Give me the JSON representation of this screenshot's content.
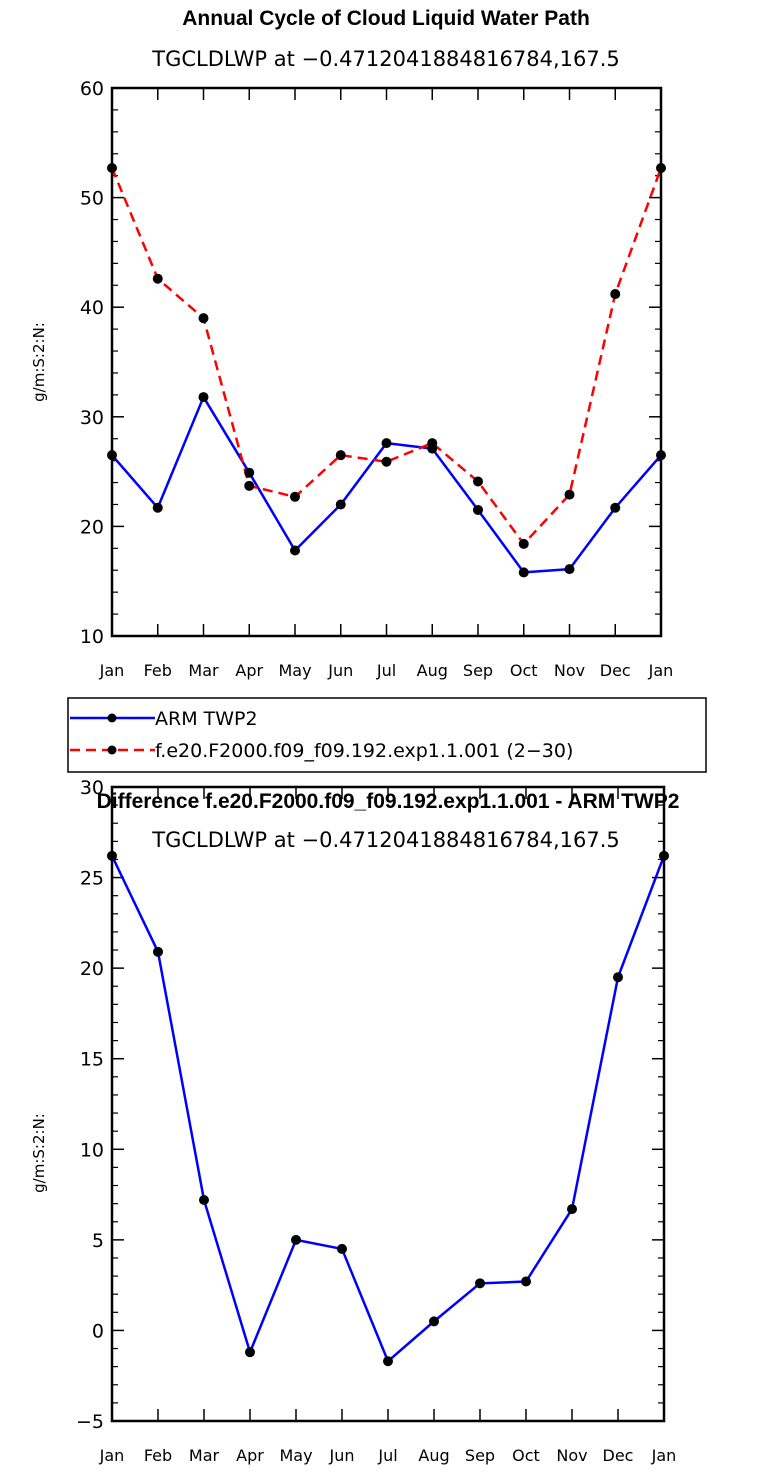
{
  "chart_data": [
    {
      "type": "line",
      "title": "Annual Cycle of Cloud Liquid Water Path",
      "subtitle": "TGCLDLWP at −0.4712041884816784,167.5",
      "xlabel": "",
      "ylabel": "g/m:S:2:N:",
      "categories": [
        "Jan",
        "Feb",
        "Mar",
        "Apr",
        "May",
        "Jun",
        "Jul",
        "Aug",
        "Sep",
        "Oct",
        "Nov",
        "Dec",
        "Jan"
      ],
      "ylim": [
        10,
        60
      ],
      "yticks": [
        10,
        20,
        30,
        40,
        50,
        60
      ],
      "yticklabels": [
        "10",
        "20",
        "30",
        "40",
        "50",
        "60"
      ],
      "grid": false,
      "legend_position": "bottom",
      "series": [
        {
          "name": "ARM TWP2",
          "color": "#0000ff",
          "dash": "solid",
          "values": [
            26.5,
            21.7,
            31.8,
            24.9,
            17.8,
            22.0,
            27.6,
            27.1,
            21.5,
            15.8,
            16.1,
            21.7,
            26.5
          ]
        },
        {
          "name": "f.e20.F2000.f09_f09.192.exp1.1.001 (2−30)",
          "color": "#ff0000",
          "dash": "dashed",
          "values": [
            52.7,
            42.6,
            39.0,
            23.7,
            22.7,
            26.5,
            25.9,
            27.6,
            24.1,
            18.4,
            22.9,
            41.2,
            52.7
          ]
        }
      ]
    },
    {
      "type": "line",
      "title": "Difference f.e20.F2000.f09_f09.192.exp1.1.001 - ARM TWP2",
      "subtitle": "TGCLDLWP at −0.4712041884816784,167.5",
      "xlabel": "",
      "ylabel": "g/m:S:2:N:",
      "categories": [
        "Jan",
        "Feb",
        "Mar",
        "Apr",
        "May",
        "Jun",
        "Jul",
        "Aug",
        "Sep",
        "Oct",
        "Nov",
        "Dec",
        "Jan"
      ],
      "ylim": [
        -5,
        30
      ],
      "yticks": [
        -5,
        0,
        5,
        10,
        15,
        20,
        25,
        30
      ],
      "yticklabels": [
        "−5",
        "0",
        "5",
        "10",
        "15",
        "20",
        "25",
        "30"
      ],
      "grid": false,
      "series": [
        {
          "name": "Difference",
          "color": "#0000ff",
          "dash": "solid",
          "values": [
            26.2,
            20.9,
            7.2,
            -1.2,
            5.0,
            4.5,
            -1.7,
            0.5,
            2.6,
            2.7,
            6.7,
            19.5,
            26.2
          ]
        }
      ]
    }
  ]
}
